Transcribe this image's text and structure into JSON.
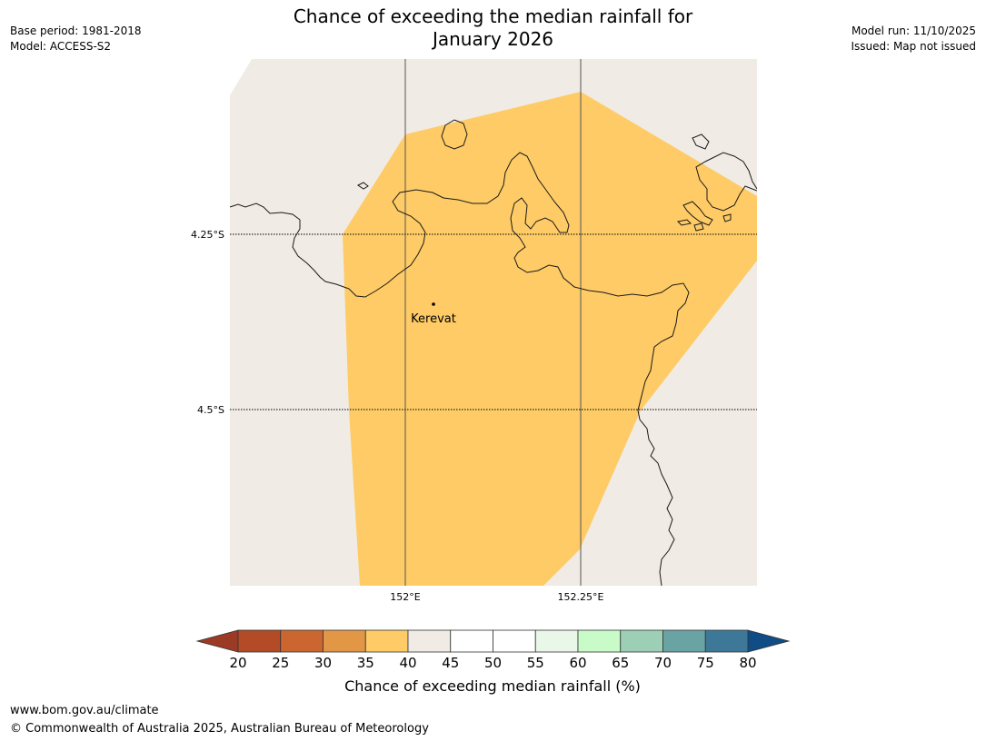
{
  "header": {
    "title_line1": "Chance of exceeding the median rainfall for",
    "title_line2": "January 2026",
    "base_period": "Base period: 1981-2018",
    "model": "Model: ACCESS-S2",
    "model_run": "Model run: 11/10/2025",
    "issued": "Issued: Map not issued"
  },
  "map": {
    "place_label": "Kerevat",
    "lat_labels": [
      "4.25°S",
      "4.5°S"
    ],
    "lon_labels": [
      "152°E",
      "152.25°E"
    ],
    "colors": {
      "background": "#f0ebe5",
      "band_35_40": "#fecb66",
      "coastline": "#1a1a1a"
    }
  },
  "legend": {
    "label": "Chance of exceeding median rainfall (%)",
    "ticks": [
      "20",
      "25",
      "30",
      "35",
      "40",
      "45",
      "50",
      "55",
      "60",
      "65",
      "70",
      "75",
      "80"
    ],
    "colors": [
      "#9b3a25",
      "#b34b26",
      "#cc6630",
      "#e29747",
      "#fecb66",
      "#f0ebe5",
      "#ffffff",
      "#ffffff",
      "#e9f7e9",
      "#c9fbc9",
      "#9ccfb6",
      "#6aa3a3",
      "#3e7898",
      "#104d86"
    ]
  },
  "footer": {
    "url": "www.bom.gov.au/climate",
    "copyright": "© Commonwealth of Australia 2025, Australian Bureau of Meteorology"
  }
}
